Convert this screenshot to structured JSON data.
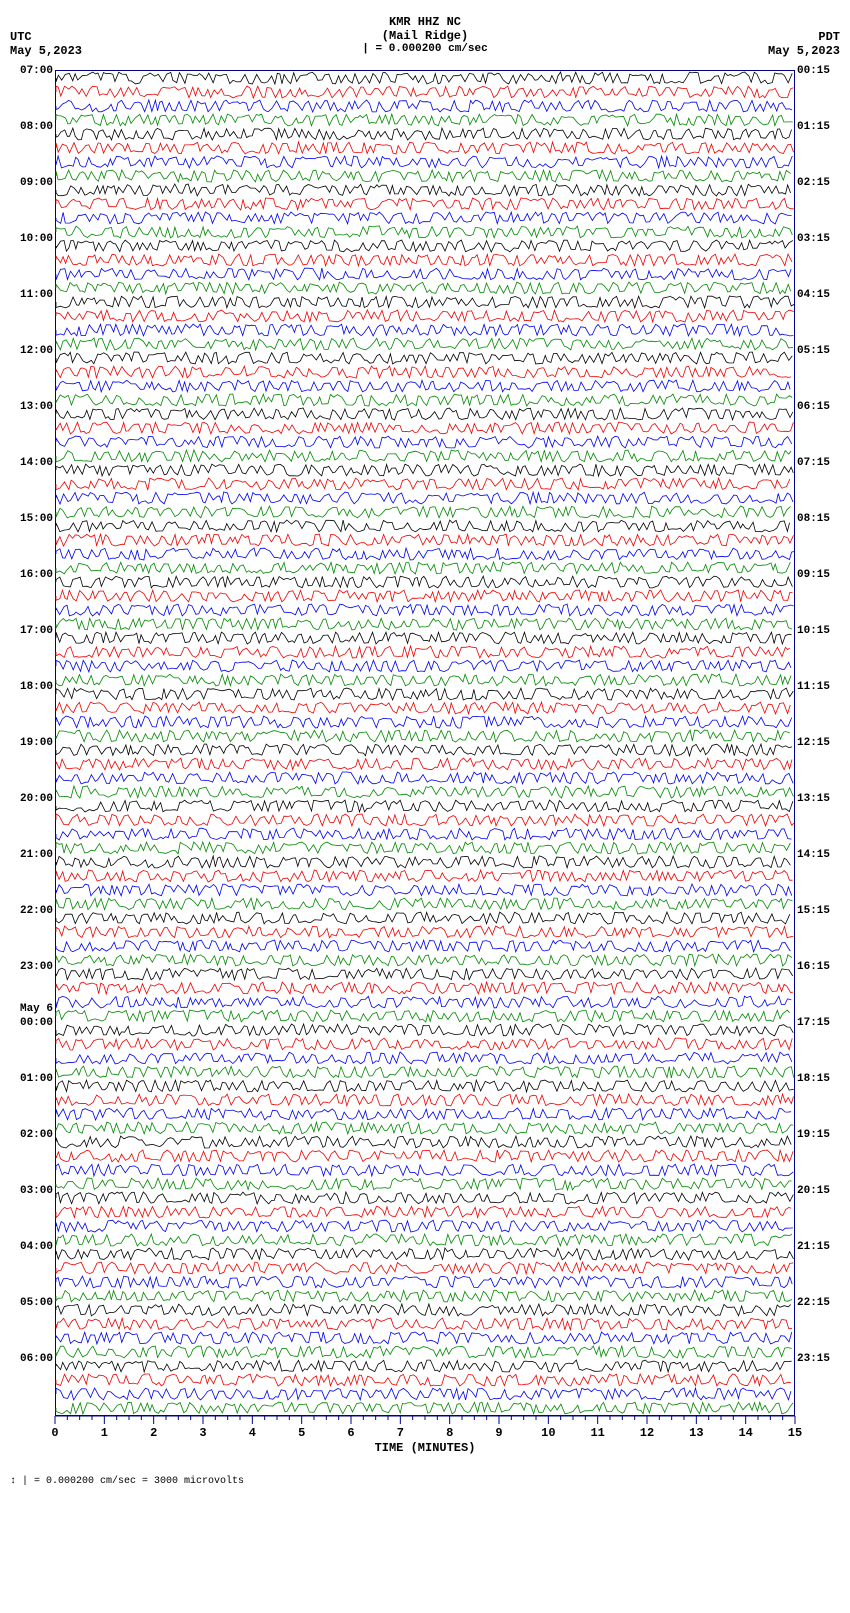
{
  "header": {
    "station": "KMR HHZ NC",
    "location": "(Mail Ridge)",
    "left_tz": "UTC",
    "left_date": "May 5,2023",
    "right_tz": "PDT",
    "right_date": "May 5,2023",
    "scale_bar": "| = 0.000200 cm/sec"
  },
  "plot": {
    "colors": [
      "#000000",
      "#ee0000",
      "#0000ee",
      "#008800"
    ],
    "background": "#ffffff",
    "border_color": "#000088",
    "trace_amplitude": 6,
    "trace_frequency": 55,
    "rows_per_hour": 4,
    "hours": 24,
    "left_times": [
      "07:00",
      "08:00",
      "09:00",
      "10:00",
      "11:00",
      "12:00",
      "13:00",
      "14:00",
      "15:00",
      "16:00",
      "17:00",
      "18:00",
      "19:00",
      "20:00",
      "21:00",
      "22:00",
      "23:00",
      "00:00",
      "01:00",
      "02:00",
      "03:00",
      "04:00",
      "05:00",
      "06:00"
    ],
    "right_times": [
      "00:15",
      "01:15",
      "02:15",
      "03:15",
      "04:15",
      "05:15",
      "06:15",
      "07:15",
      "08:15",
      "09:15",
      "10:15",
      "11:15",
      "12:15",
      "13:15",
      "14:15",
      "15:15",
      "16:15",
      "17:15",
      "18:15",
      "19:15",
      "20:15",
      "21:15",
      "22:15",
      "23:15"
    ],
    "day_marker": {
      "row_index": 68,
      "label": "May 6"
    },
    "x_axis": {
      "min": 0,
      "max": 15,
      "major_tick_step": 1,
      "minor_ticks_per_major": 4,
      "label": "TIME (MINUTES)"
    }
  },
  "footer": {
    "text": "↕ | = 0.000200 cm/sec =   3000 microvolts"
  }
}
